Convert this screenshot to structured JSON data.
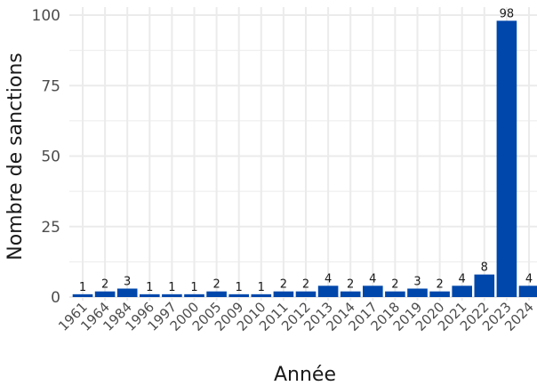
{
  "chart_data": {
    "type": "bar",
    "title": "",
    "xlabel": "Année",
    "ylabel": "Nombre de sanctions",
    "categories": [
      "1961",
      "1964",
      "1984",
      "1996",
      "1997",
      "2000",
      "2005",
      "2009",
      "2010",
      "2011",
      "2012",
      "2013",
      "2014",
      "2017",
      "2018",
      "2019",
      "2020",
      "2021",
      "2022",
      "2023",
      "2024"
    ],
    "values": [
      1,
      2,
      3,
      1,
      1,
      1,
      2,
      1,
      1,
      2,
      2,
      4,
      2,
      4,
      2,
      3,
      2,
      4,
      8,
      98,
      4
    ],
    "data_labels": [
      "1",
      "2",
      "3",
      "1",
      "1",
      "1",
      "2",
      "1",
      "1",
      "2",
      "2",
      "4",
      "2",
      "4",
      "2",
      "3",
      "2",
      "4",
      "8",
      "98",
      "4"
    ],
    "ylim": [
      0,
      100
    ],
    "yticks": [
      0,
      25,
      50,
      75,
      100
    ],
    "ytick_labels": [
      "0",
      "25",
      "50",
      "75",
      "100"
    ],
    "grid": true,
    "legend": "none",
    "bar_color": "#0047AB",
    "grid_color": "#ebebeb"
  }
}
